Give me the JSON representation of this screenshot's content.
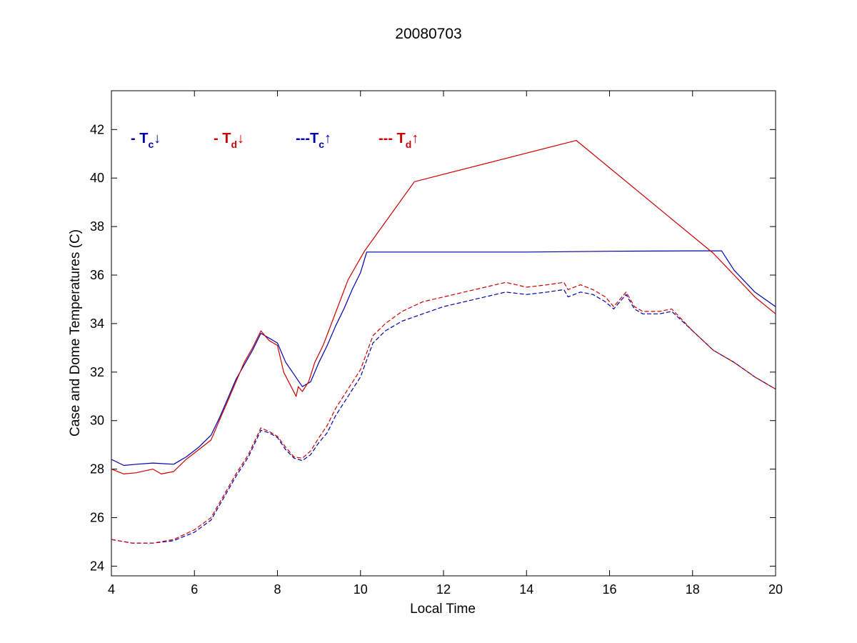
{
  "chart_data": {
    "type": "line",
    "title": "20080703",
    "xlabel": "Local Time",
    "ylabel": "Case and Dome Temperatures (C)",
    "xlim": [
      4,
      20
    ],
    "ylim": [
      23.6,
      43.6
    ],
    "xticks": [
      4,
      6,
      8,
      10,
      12,
      14,
      16,
      18,
      20
    ],
    "yticks": [
      24,
      26,
      28,
      30,
      32,
      34,
      36,
      38,
      40,
      42
    ],
    "grid": false,
    "legend_placement": "top-left",
    "series": [
      {
        "name": "Tc↓",
        "legend_prefix": "- ",
        "legend_main": "T",
        "legend_sub": "c",
        "legend_arrow": "↓",
        "color": "#0000aa",
        "dash": "solid",
        "x": [
          4,
          4.3,
          4.6,
          5.0,
          5.5,
          5.8,
          6.1,
          6.4,
          6.6,
          6.8,
          7.0,
          7.2,
          7.4,
          7.6,
          7.8,
          8.0,
          8.2,
          8.4,
          8.6,
          8.8,
          9.0,
          9.2,
          9.4,
          9.6,
          9.8,
          10.0,
          10.15,
          12,
          14,
          16,
          18,
          18.7,
          19.0,
          19.5,
          20
        ],
        "y": [
          28.4,
          28.15,
          28.2,
          28.25,
          28.2,
          28.5,
          28.9,
          29.4,
          30.1,
          30.9,
          31.7,
          32.3,
          32.9,
          33.6,
          33.4,
          33.2,
          32.4,
          31.9,
          31.4,
          31.6,
          32.4,
          33.1,
          33.9,
          34.6,
          35.4,
          36.1,
          36.95,
          36.95,
          36.95,
          36.98,
          37.0,
          37.0,
          36.2,
          35.3,
          34.7
        ]
      },
      {
        "name": "Td↓",
        "legend_prefix": "- ",
        "legend_main": "T",
        "legend_sub": "d",
        "legend_arrow": "↓",
        "color": "#cc0000",
        "dash": "solid",
        "x": [
          4,
          4.3,
          4.6,
          5.0,
          5.2,
          5.5,
          5.8,
          6.1,
          6.4,
          6.6,
          6.8,
          7.0,
          7.2,
          7.4,
          7.6,
          7.8,
          8.0,
          8.15,
          8.3,
          8.45,
          8.5,
          8.6,
          8.75,
          8.9,
          9.1,
          9.3,
          9.5,
          9.7,
          9.9,
          10.1,
          11.3,
          15.2,
          18.5,
          19.0,
          19.5,
          20
        ],
        "y": [
          28.0,
          27.8,
          27.85,
          28.0,
          27.8,
          27.9,
          28.4,
          28.8,
          29.2,
          30.0,
          30.8,
          31.6,
          32.4,
          33.0,
          33.7,
          33.3,
          33.1,
          32.0,
          31.5,
          31.0,
          31.4,
          31.2,
          31.6,
          32.4,
          33.1,
          34.0,
          34.9,
          35.8,
          36.4,
          37.0,
          39.85,
          41.55,
          36.9,
          36.0,
          35.1,
          34.4
        ]
      },
      {
        "name": "Tc↑",
        "legend_prefix": "---",
        "legend_main": "T",
        "legend_sub": "c",
        "legend_arrow": "↑",
        "color": "#0000aa",
        "dash": "dashed",
        "x": [
          4,
          4.5,
          5.0,
          5.5,
          6.0,
          6.4,
          6.7,
          7.0,
          7.3,
          7.6,
          7.8,
          8.0,
          8.2,
          8.4,
          8.6,
          8.8,
          9.0,
          9.2,
          9.4,
          9.7,
          10.0,
          10.3,
          10.6,
          11.0,
          11.5,
          12.0,
          12.5,
          13.0,
          13.5,
          14.0,
          14.5,
          14.9,
          15.0,
          15.3,
          15.6,
          15.9,
          16.1,
          16.4,
          16.6,
          16.8,
          17.2,
          17.5,
          18.0,
          18.5,
          19.0,
          19.5,
          20
        ],
        "y": [
          25.1,
          24.95,
          24.95,
          25.05,
          25.4,
          25.9,
          26.8,
          27.7,
          28.5,
          29.6,
          29.5,
          29.3,
          28.8,
          28.45,
          28.35,
          28.6,
          29.1,
          29.5,
          30.2,
          31.0,
          31.8,
          33.2,
          33.7,
          34.1,
          34.4,
          34.7,
          34.9,
          35.1,
          35.3,
          35.2,
          35.3,
          35.4,
          35.1,
          35.3,
          35.2,
          34.9,
          34.6,
          35.2,
          34.6,
          34.4,
          34.4,
          34.5,
          33.7,
          32.9,
          32.4,
          31.8,
          31.3
        ]
      },
      {
        "name": "Td↑",
        "legend_prefix": "--- ",
        "legend_main": "T",
        "legend_sub": "d",
        "legend_arrow": "↑",
        "color": "#cc0000",
        "dash": "dashed",
        "x": [
          4,
          4.5,
          5.0,
          5.5,
          6.0,
          6.4,
          6.7,
          7.0,
          7.3,
          7.6,
          7.8,
          8.0,
          8.2,
          8.4,
          8.6,
          8.8,
          9.0,
          9.2,
          9.4,
          9.7,
          10.0,
          10.3,
          10.6,
          11.0,
          11.5,
          12.0,
          12.5,
          13.0,
          13.5,
          14.0,
          14.5,
          14.9,
          15.0,
          15.3,
          15.6,
          15.9,
          16.1,
          16.4,
          16.6,
          16.8,
          17.2,
          17.5,
          18.0,
          18.5,
          19.0,
          19.5,
          20
        ],
        "y": [
          25.1,
          24.95,
          24.95,
          25.1,
          25.5,
          26.0,
          26.9,
          27.8,
          28.6,
          29.7,
          29.55,
          29.35,
          28.9,
          28.5,
          28.45,
          28.75,
          29.3,
          29.8,
          30.5,
          31.3,
          32.1,
          33.5,
          34.0,
          34.5,
          34.9,
          35.1,
          35.3,
          35.5,
          35.7,
          35.5,
          35.6,
          35.7,
          35.4,
          35.6,
          35.4,
          35.1,
          34.7,
          35.3,
          34.7,
          34.5,
          34.5,
          34.6,
          33.7,
          32.9,
          32.4,
          31.8,
          31.3
        ]
      }
    ]
  }
}
